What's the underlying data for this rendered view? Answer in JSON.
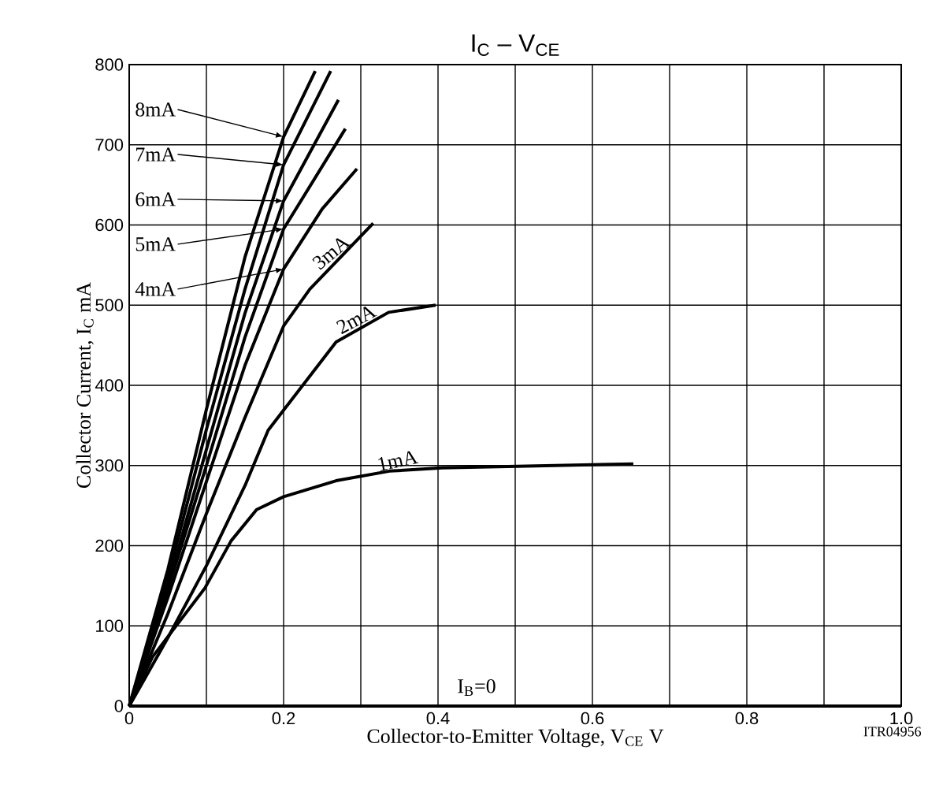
{
  "chart_data": {
    "type": "line",
    "title": "I$_{C}$ – V$_{CE}$",
    "xlabel": "Collector-to-Emitter Voltage, V$_{CE}$     V",
    "ylabel": "Collector Current, I$_{C}$     mA",
    "annotations": [
      "ITR04956"
    ],
    "xlim": [
      0,
      1.0
    ],
    "ylim": [
      0,
      800
    ],
    "xticks": [
      0,
      {
        "value": 0.1,
        "label": null
      },
      0.2,
      {
        "value": 0.3,
        "label": null
      },
      0.4,
      {
        "value": 0.5,
        "label": null
      },
      0.6,
      {
        "value": 0.7,
        "label": null
      },
      0.8,
      {
        "value": 0.9,
        "label": null
      },
      {
        "value": 1,
        "label": "1.0"
      }
    ],
    "yticks": [
      0,
      100,
      200,
      300,
      400,
      500,
      600,
      700,
      800
    ],
    "grid": true,
    "legend": "top left",
    "marker": "none",
    "line_style": "solid",
    "series": [
      {
        "name": "I$_{B}$=0",
        "color": "#000000",
        "x": [
          0,
          1.0
        ],
        "values": [
          0,
          0
        ]
      },
      {
        "name": "1mA",
        "color": "#000000",
        "x": [
          0,
          0.03,
          0.098,
          0.132,
          0.165,
          0.2,
          0.268,
          0.337,
          0.405,
          0.653
        ],
        "values": [
          0,
          61,
          147,
          206,
          245,
          261,
          281,
          293,
          297,
          302
        ]
      },
      {
        "name": "2mA",
        "color": "#000000",
        "x": [
          0,
          0.05,
          0.1,
          0.15,
          0.18,
          0.2,
          0.268,
          0.336,
          0.397
        ],
        "values": [
          0,
          85,
          175,
          275,
          344,
          369,
          454,
          491,
          500
        ]
      },
      {
        "name": "3mA",
        "color": "#000000",
        "x": [
          0,
          0.05,
          0.1,
          0.15,
          0.2,
          0.234,
          0.316
        ],
        "values": [
          0,
          115,
          240,
          360,
          474,
          520,
          602
        ]
      },
      {
        "name": "4mA",
        "color": "#000000",
        "x": [
          0,
          0.05,
          0.1,
          0.15,
          0.2,
          0.25,
          0.295
        ],
        "values": [
          0,
          135,
          280,
          425,
          545,
          620,
          670
        ]
      },
      {
        "name": "5mA",
        "color": "#000000",
        "x": [
          0,
          0.05,
          0.1,
          0.15,
          0.2,
          0.28
        ],
        "values": [
          0,
          145,
          300,
          460,
          595,
          720
        ]
      },
      {
        "name": "6mA",
        "color": "#000000",
        "x": [
          0,
          0.05,
          0.1,
          0.15,
          0.2,
          0.271
        ],
        "values": [
          0,
          150,
          320,
          490,
          630,
          756
        ]
      },
      {
        "name": "7mA",
        "color": "#000000",
        "x": [
          0,
          0.05,
          0.1,
          0.15,
          0.2,
          0.261
        ],
        "values": [
          0,
          160,
          345,
          520,
          675,
          792
        ]
      },
      {
        "name": "8mA",
        "color": "#000000",
        "x": [
          0,
          0.05,
          0.1,
          0.15,
          0.2,
          0.241
        ],
        "values": [
          0,
          170,
          370,
          560,
          710,
          792
        ]
      }
    ]
  }
}
